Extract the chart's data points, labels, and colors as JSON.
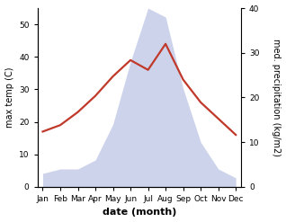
{
  "months": [
    "Jan",
    "Feb",
    "Mar",
    "Apr",
    "May",
    "Jun",
    "Jul",
    "Aug",
    "Sep",
    "Oct",
    "Nov",
    "Dec"
  ],
  "temperature": [
    17,
    19,
    23,
    28,
    34,
    39,
    36,
    44,
    33,
    26,
    21,
    16
  ],
  "precipitation": [
    3,
    4,
    4,
    6,
    14,
    28,
    40,
    38,
    22,
    10,
    4,
    2
  ],
  "temp_color": "#c0392b",
  "precip_fill_color": "#c5cce8",
  "precip_alpha": 0.85,
  "left_ylim": [
    0,
    55
  ],
  "right_ylim": [
    0,
    40
  ],
  "left_yticks": [
    0,
    10,
    20,
    30,
    40,
    50
  ],
  "right_yticks": [
    0,
    10,
    20,
    30,
    40
  ],
  "xlabel": "date (month)",
  "ylabel_left": "max temp (C)",
  "ylabel_right": "med. precipitation (kg/m2)",
  "bg_color": "#ffffff",
  "line_width": 1.6,
  "tick_fontsize": 6.5,
  "label_fontsize": 7,
  "xlabel_fontsize": 8
}
